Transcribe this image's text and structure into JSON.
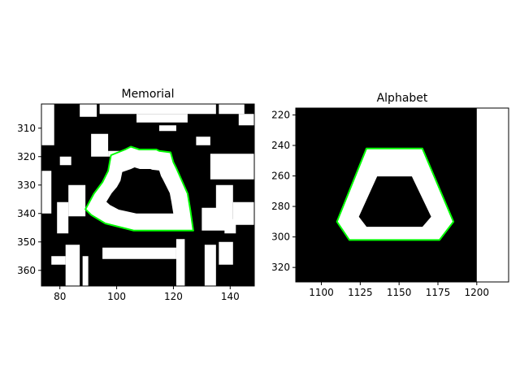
{
  "chart_data": [
    {
      "type": "image",
      "title": "Memorial",
      "xlim": [
        73.5,
        148.5
      ],
      "ylim": [
        365.5,
        301.5
      ],
      "xticks": [
        80,
        100,
        120,
        140
      ],
      "yticks": [
        310,
        320,
        330,
        340,
        350,
        360
      ],
      "image_colors": {
        "background": "#000000",
        "foreground": "#ffffff"
      },
      "contour_color": "#00ff00",
      "contour_points": [
        [
          105,
          316.5
        ],
        [
          108,
          317.5
        ],
        [
          114,
          317.5
        ],
        [
          115,
          318
        ],
        [
          119,
          318.5
        ],
        [
          120,
          322
        ],
        [
          121,
          324
        ],
        [
          123,
          328.5
        ],
        [
          125,
          333
        ],
        [
          126,
          339
        ],
        [
          127,
          346
        ],
        [
          116,
          346
        ],
        [
          106,
          346
        ],
        [
          100,
          344.5
        ],
        [
          96,
          343.5
        ],
        [
          91,
          340.5
        ],
        [
          89,
          338.5
        ],
        [
          92,
          333
        ],
        [
          95,
          329
        ],
        [
          97,
          325
        ],
        [
          98,
          319.5
        ],
        [
          103,
          317.5
        ]
      ]
    },
    {
      "type": "image",
      "title": "Alphabet",
      "xlim": [
        1083.5,
        1220.5
      ],
      "ylim": [
        329.5,
        215.5
      ],
      "xticks": [
        1100,
        1125,
        1150,
        1175,
        1200
      ],
      "yticks": [
        220,
        240,
        260,
        280,
        300,
        320
      ],
      "image_colors": {
        "background": "#000000",
        "foreground": "#ffffff"
      },
      "contour_color": "#00ff00",
      "contour_points": [
        [
          1129,
          242
        ],
        [
          1165,
          242
        ],
        [
          1185,
          290
        ],
        [
          1176,
          302
        ],
        [
          1118,
          302
        ],
        [
          1110,
          290
        ]
      ]
    }
  ]
}
